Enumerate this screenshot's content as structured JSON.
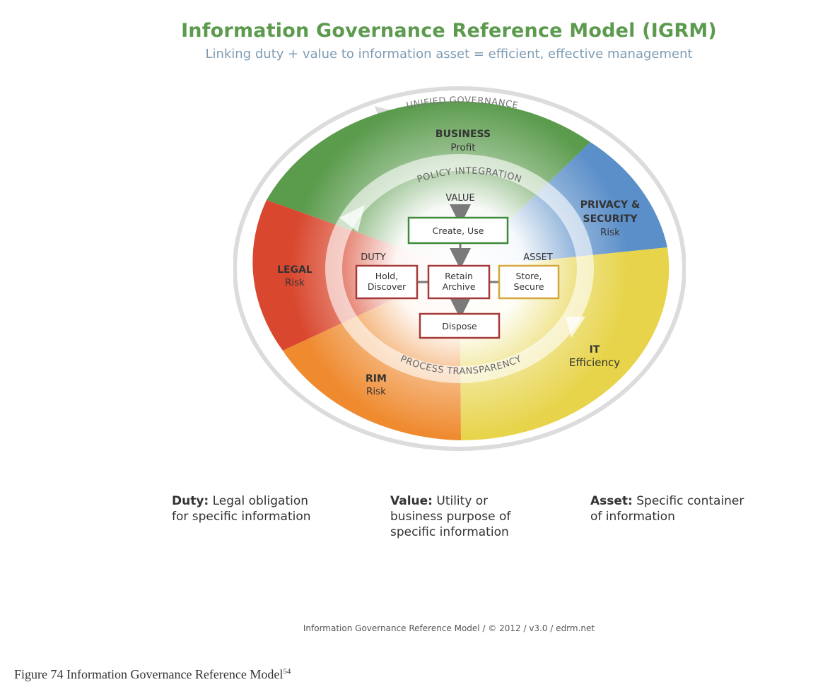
{
  "header": {
    "title": "Information Governance Reference Model (IGRM)",
    "subtitle": "Linking duty + value to information asset = efficient, effective management"
  },
  "ring": {
    "outer": "UNIFIED GOVERNANCE",
    "policy": "POLICY INTEGRATION",
    "process": "PROCESS TRANSPARENCY"
  },
  "segments": {
    "business": {
      "title": "BUSINESS",
      "sub": "Profit",
      "color": "#5a9b4c"
    },
    "privacy": {
      "title1": "PRIVACY &",
      "title2": "SECURITY",
      "sub": "Risk",
      "color": "#5b8fc9"
    },
    "it": {
      "title": "IT",
      "sub": "Efficiency",
      "color": "#e7d44a"
    },
    "rim": {
      "title": "RIM",
      "sub": "Risk",
      "color": "#ef8a2f"
    },
    "legal": {
      "title": "LEGAL",
      "sub": "Risk",
      "color": "#d9472e"
    }
  },
  "inner": {
    "value": "VALUE",
    "duty": "DUTY",
    "asset": "ASSET"
  },
  "boxes": {
    "create": "Create, Use",
    "hold1": "Hold,",
    "hold2": "Discover",
    "retain1": "Retain",
    "retain2": "Archive",
    "store1": "Store,",
    "store2": "Secure",
    "dispose": "Dispose"
  },
  "definitions": {
    "duty": {
      "term": "Duty:",
      "line1": " Legal obligation",
      "line2": "for specific information"
    },
    "value": {
      "term": "Value:",
      "line1": " Utility or",
      "line2": "business purpose of",
      "line3": "specific information"
    },
    "asset": {
      "term": "Asset:",
      "line1": " Specific container",
      "line2": "of information"
    }
  },
  "copyright": "Information Governance Reference Model / © 2012 / v3.0 / edrm.net",
  "caption": {
    "text": "Figure 74 Information Governance Reference Model",
    "sup": "54"
  }
}
